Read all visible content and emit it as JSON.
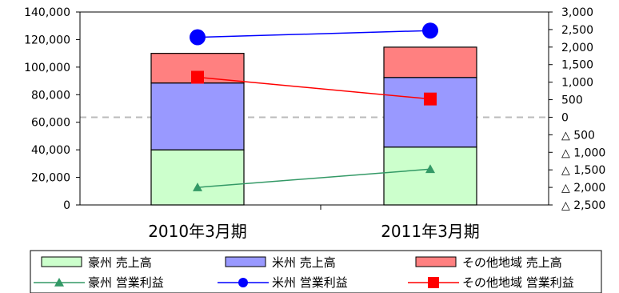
{
  "chart_data": {
    "type": "bar",
    "title": "",
    "categories": [
      "2010年3月期",
      "2011年3月期"
    ],
    "left_axis": {
      "ylim": [
        0,
        140000
      ],
      "ticks": [
        {
          "value": 0,
          "label": "0"
        },
        {
          "value": 20000,
          "label": "20,000"
        },
        {
          "value": 40000,
          "label": "40,000"
        },
        {
          "value": 60000,
          "label": "60,000"
        },
        {
          "value": 80000,
          "label": "80,000"
        },
        {
          "value": 100000,
          "label": "100,000"
        },
        {
          "value": 120000,
          "label": "120,000"
        },
        {
          "value": 140000,
          "label": "140,000"
        }
      ]
    },
    "right_axis": {
      "ylim": [
        -2500,
        3000
      ],
      "ticks": [
        {
          "value": 3000,
          "label": "3,000"
        },
        {
          "value": 2500,
          "label": "2,500"
        },
        {
          "value": 2000,
          "label": "2,000"
        },
        {
          "value": 1500,
          "label": "1,500"
        },
        {
          "value": 1000,
          "label": "1,000"
        },
        {
          "value": 500,
          "label": "500"
        },
        {
          "value": 0,
          "label": "0"
        },
        {
          "value": -500,
          "label": "△ 500"
        },
        {
          "value": -1000,
          "label": "△ 1,000"
        },
        {
          "value": -1500,
          "label": "△ 1,500"
        },
        {
          "value": -2000,
          "label": "△ 2,000"
        },
        {
          "value": -2500,
          "label": "△ 2,500"
        }
      ]
    },
    "bar_series": [
      {
        "name": "豪州 売上高",
        "color": "#ccffcc",
        "values": [
          40000,
          42000
        ]
      },
      {
        "name": "米州 売上高",
        "color": "#9999ff",
        "values": [
          48500,
          50500
        ]
      },
      {
        "name": "その他地域 売上高",
        "color": "#ff8080",
        "values": [
          21500,
          22000
        ]
      }
    ],
    "line_series": [
      {
        "name": "豪州 営業利益",
        "color": "#339966",
        "marker": "triangle",
        "values": [
          -2000,
          -1480
        ]
      },
      {
        "name": "米州 営業利益",
        "color": "#0000ff",
        "marker": "circle",
        "values": [
          2280,
          2470
        ]
      },
      {
        "name": "その他地域 営業利益",
        "color": "#ff0000",
        "marker": "square",
        "values": [
          1140,
          520
        ]
      }
    ],
    "zero_reference_line": {
      "axis": "right",
      "value": 0,
      "style": "dashed",
      "color": "#bbbbbb"
    },
    "legend": {
      "placement": "bottom"
    }
  }
}
